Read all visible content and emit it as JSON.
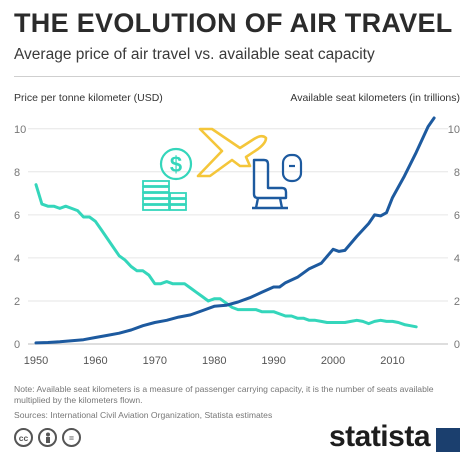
{
  "header": {
    "title": "THE EVOLUTION OF AIR TRAVEL",
    "subtitle": "Average price of air travel vs. available seat capacity"
  },
  "footer": {
    "note": "Note: Available seat kilometers is a measure of passenger carrying capacity, it is the number of seats available multiplied by the kilometers flown.",
    "sources": "Sources: International Civil Aviation Organization, Statista estimates",
    "license_icons": [
      "cc-icon",
      "person-icon",
      "equals-icon"
    ],
    "logo_text": "statista"
  },
  "colors": {
    "price_line": "#34d6bb",
    "capacity_line": "#1d5a9f",
    "icon_yellow": "#f4c63a",
    "icon_teal": "#34d6bb",
    "icon_blue": "#1d5a9f",
    "logo_blue": "#1b3f6e"
  },
  "chart_data": {
    "type": "line",
    "left_axis_label": "Price per tonne kilometer (USD)",
    "right_axis_label": "Available seat kilometers (in trillions)",
    "x_ticks": [
      1950,
      1960,
      1970,
      1980,
      1990,
      2000,
      2010
    ],
    "y_ticks_left": [
      0,
      2,
      4,
      6,
      8,
      10
    ],
    "y_ticks_right": [
      0,
      2,
      4,
      6,
      8,
      10
    ],
    "xlim": [
      1950,
      2018
    ],
    "ylim": [
      0,
      10.5
    ],
    "grid": true,
    "series": [
      {
        "axis": "left",
        "color": "#34d6bb",
        "x": [
          1950,
          1951,
          1952,
          1953,
          1954,
          1955,
          1956,
          1957,
          1958,
          1959,
          1960,
          1961,
          1962,
          1963,
          1964,
          1965,
          1966,
          1967,
          1968,
          1969,
          1970,
          1971,
          1972,
          1973,
          1974,
          1975,
          1976,
          1977,
          1978,
          1979,
          1980,
          1981,
          1982,
          1983,
          1984,
          1985,
          1986,
          1987,
          1988,
          1989,
          1990,
          1991,
          1992,
          1993,
          1994,
          1995,
          1996,
          1997,
          1998,
          1999,
          2000,
          2001,
          2002,
          2003,
          2004,
          2005,
          2006,
          2007,
          2008,
          2009,
          2010,
          2011,
          2012,
          2013,
          2014
        ],
        "values": [
          7.4,
          6.5,
          6.4,
          6.4,
          6.3,
          6.4,
          6.3,
          6.2,
          5.9,
          5.9,
          5.7,
          5.3,
          4.9,
          4.5,
          4.1,
          3.9,
          3.6,
          3.4,
          3.4,
          3.2,
          2.8,
          2.8,
          2.9,
          2.8,
          2.8,
          2.8,
          2.6,
          2.4,
          2.2,
          2.0,
          2.1,
          2.1,
          1.9,
          1.7,
          1.6,
          1.6,
          1.6,
          1.6,
          1.5,
          1.5,
          1.5,
          1.4,
          1.3,
          1.3,
          1.2,
          1.2,
          1.1,
          1.1,
          1.05,
          1.0,
          1.0,
          1.0,
          1.0,
          1.05,
          1.1,
          1.05,
          0.95,
          1.05,
          1.1,
          1.05,
          1.05,
          1.0,
          0.9,
          0.85,
          0.8
        ]
      },
      {
        "axis": "right",
        "color": "#1d5a9f",
        "x": [
          1950,
          1952,
          1954,
          1956,
          1958,
          1960,
          1962,
          1964,
          1966,
          1968,
          1970,
          1972,
          1974,
          1976,
          1978,
          1980,
          1982,
          1984,
          1986,
          1988,
          1990,
          1991,
          1992,
          1994,
          1996,
          1998,
          2000,
          2001,
          2002,
          2004,
          2006,
          2007,
          2008,
          2009,
          2010,
          2012,
          2014,
          2016,
          2017
        ],
        "values": [
          0.05,
          0.07,
          0.1,
          0.15,
          0.2,
          0.3,
          0.4,
          0.5,
          0.65,
          0.85,
          1.0,
          1.1,
          1.25,
          1.35,
          1.55,
          1.75,
          1.8,
          1.95,
          2.15,
          2.4,
          2.65,
          2.65,
          2.85,
          3.1,
          3.5,
          3.75,
          4.4,
          4.3,
          4.35,
          5.0,
          5.6,
          6.0,
          5.95,
          6.1,
          6.8,
          7.8,
          8.9,
          10.1,
          10.5
        ]
      }
    ]
  }
}
